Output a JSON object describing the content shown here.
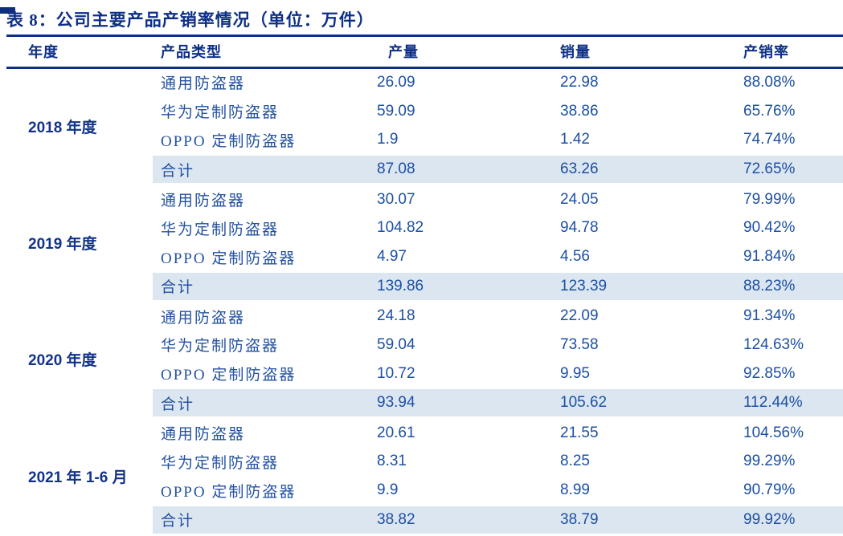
{
  "title": "表 8：公司主要产品产销率情况（单位：万件）",
  "colors": {
    "navy": "#0d2f86",
    "value_blue": "#1c50a2",
    "total_row_bg": "#dce6f1"
  },
  "table": {
    "columns": [
      "年度",
      "产品类型",
      "产量",
      "销量",
      "产销率"
    ],
    "groups": [
      {
        "year": "2018 年度",
        "rows": [
          {
            "product": "通用防盗器",
            "production": "26.09",
            "sales": "22.98",
            "ratio": "88.08%"
          },
          {
            "product": "华为定制防盗器",
            "production": "59.09",
            "sales": "38.86",
            "ratio": "65.76%"
          },
          {
            "product": "OPPO 定制防盗器",
            "production": "1.9",
            "sales": "1.42",
            "ratio": "74.74%"
          },
          {
            "product": "合计",
            "production": "87.08",
            "sales": "63.26",
            "ratio": "72.65%"
          }
        ]
      },
      {
        "year": "2019 年度",
        "rows": [
          {
            "product": "通用防盗器",
            "production": "30.07",
            "sales": "24.05",
            "ratio": "79.99%"
          },
          {
            "product": "华为定制防盗器",
            "production": "104.82",
            "sales": "94.78",
            "ratio": "90.42%"
          },
          {
            "product": "OPPO 定制防盗器",
            "production": "4.97",
            "sales": "4.56",
            "ratio": "91.84%"
          },
          {
            "product": "合计",
            "production": "139.86",
            "sales": "123.39",
            "ratio": "88.23%"
          }
        ]
      },
      {
        "year": "2020 年度",
        "rows": [
          {
            "product": "通用防盗器",
            "production": "24.18",
            "sales": "22.09",
            "ratio": "91.34%"
          },
          {
            "product": "华为定制防盗器",
            "production": "59.04",
            "sales": "73.58",
            "ratio": "124.63%"
          },
          {
            "product": "OPPO 定制防盗器",
            "production": "10.72",
            "sales": "9.95",
            "ratio": "92.85%"
          },
          {
            "product": "合计",
            "production": "93.94",
            "sales": "105.62",
            "ratio": "112.44%"
          }
        ]
      },
      {
        "year": "2021 年 1-6 月",
        "rows": [
          {
            "product": "通用防盗器",
            "production": "20.61",
            "sales": "21.55",
            "ratio": "104.56%"
          },
          {
            "product": "华为定制防盗器",
            "production": "8.31",
            "sales": "8.25",
            "ratio": "99.29%"
          },
          {
            "product": "OPPO 定制防盗器",
            "production": "9.9",
            "sales": "8.99",
            "ratio": "90.79%"
          },
          {
            "product": "合计",
            "production": "38.82",
            "sales": "38.79",
            "ratio": "99.92%"
          }
        ]
      }
    ]
  }
}
